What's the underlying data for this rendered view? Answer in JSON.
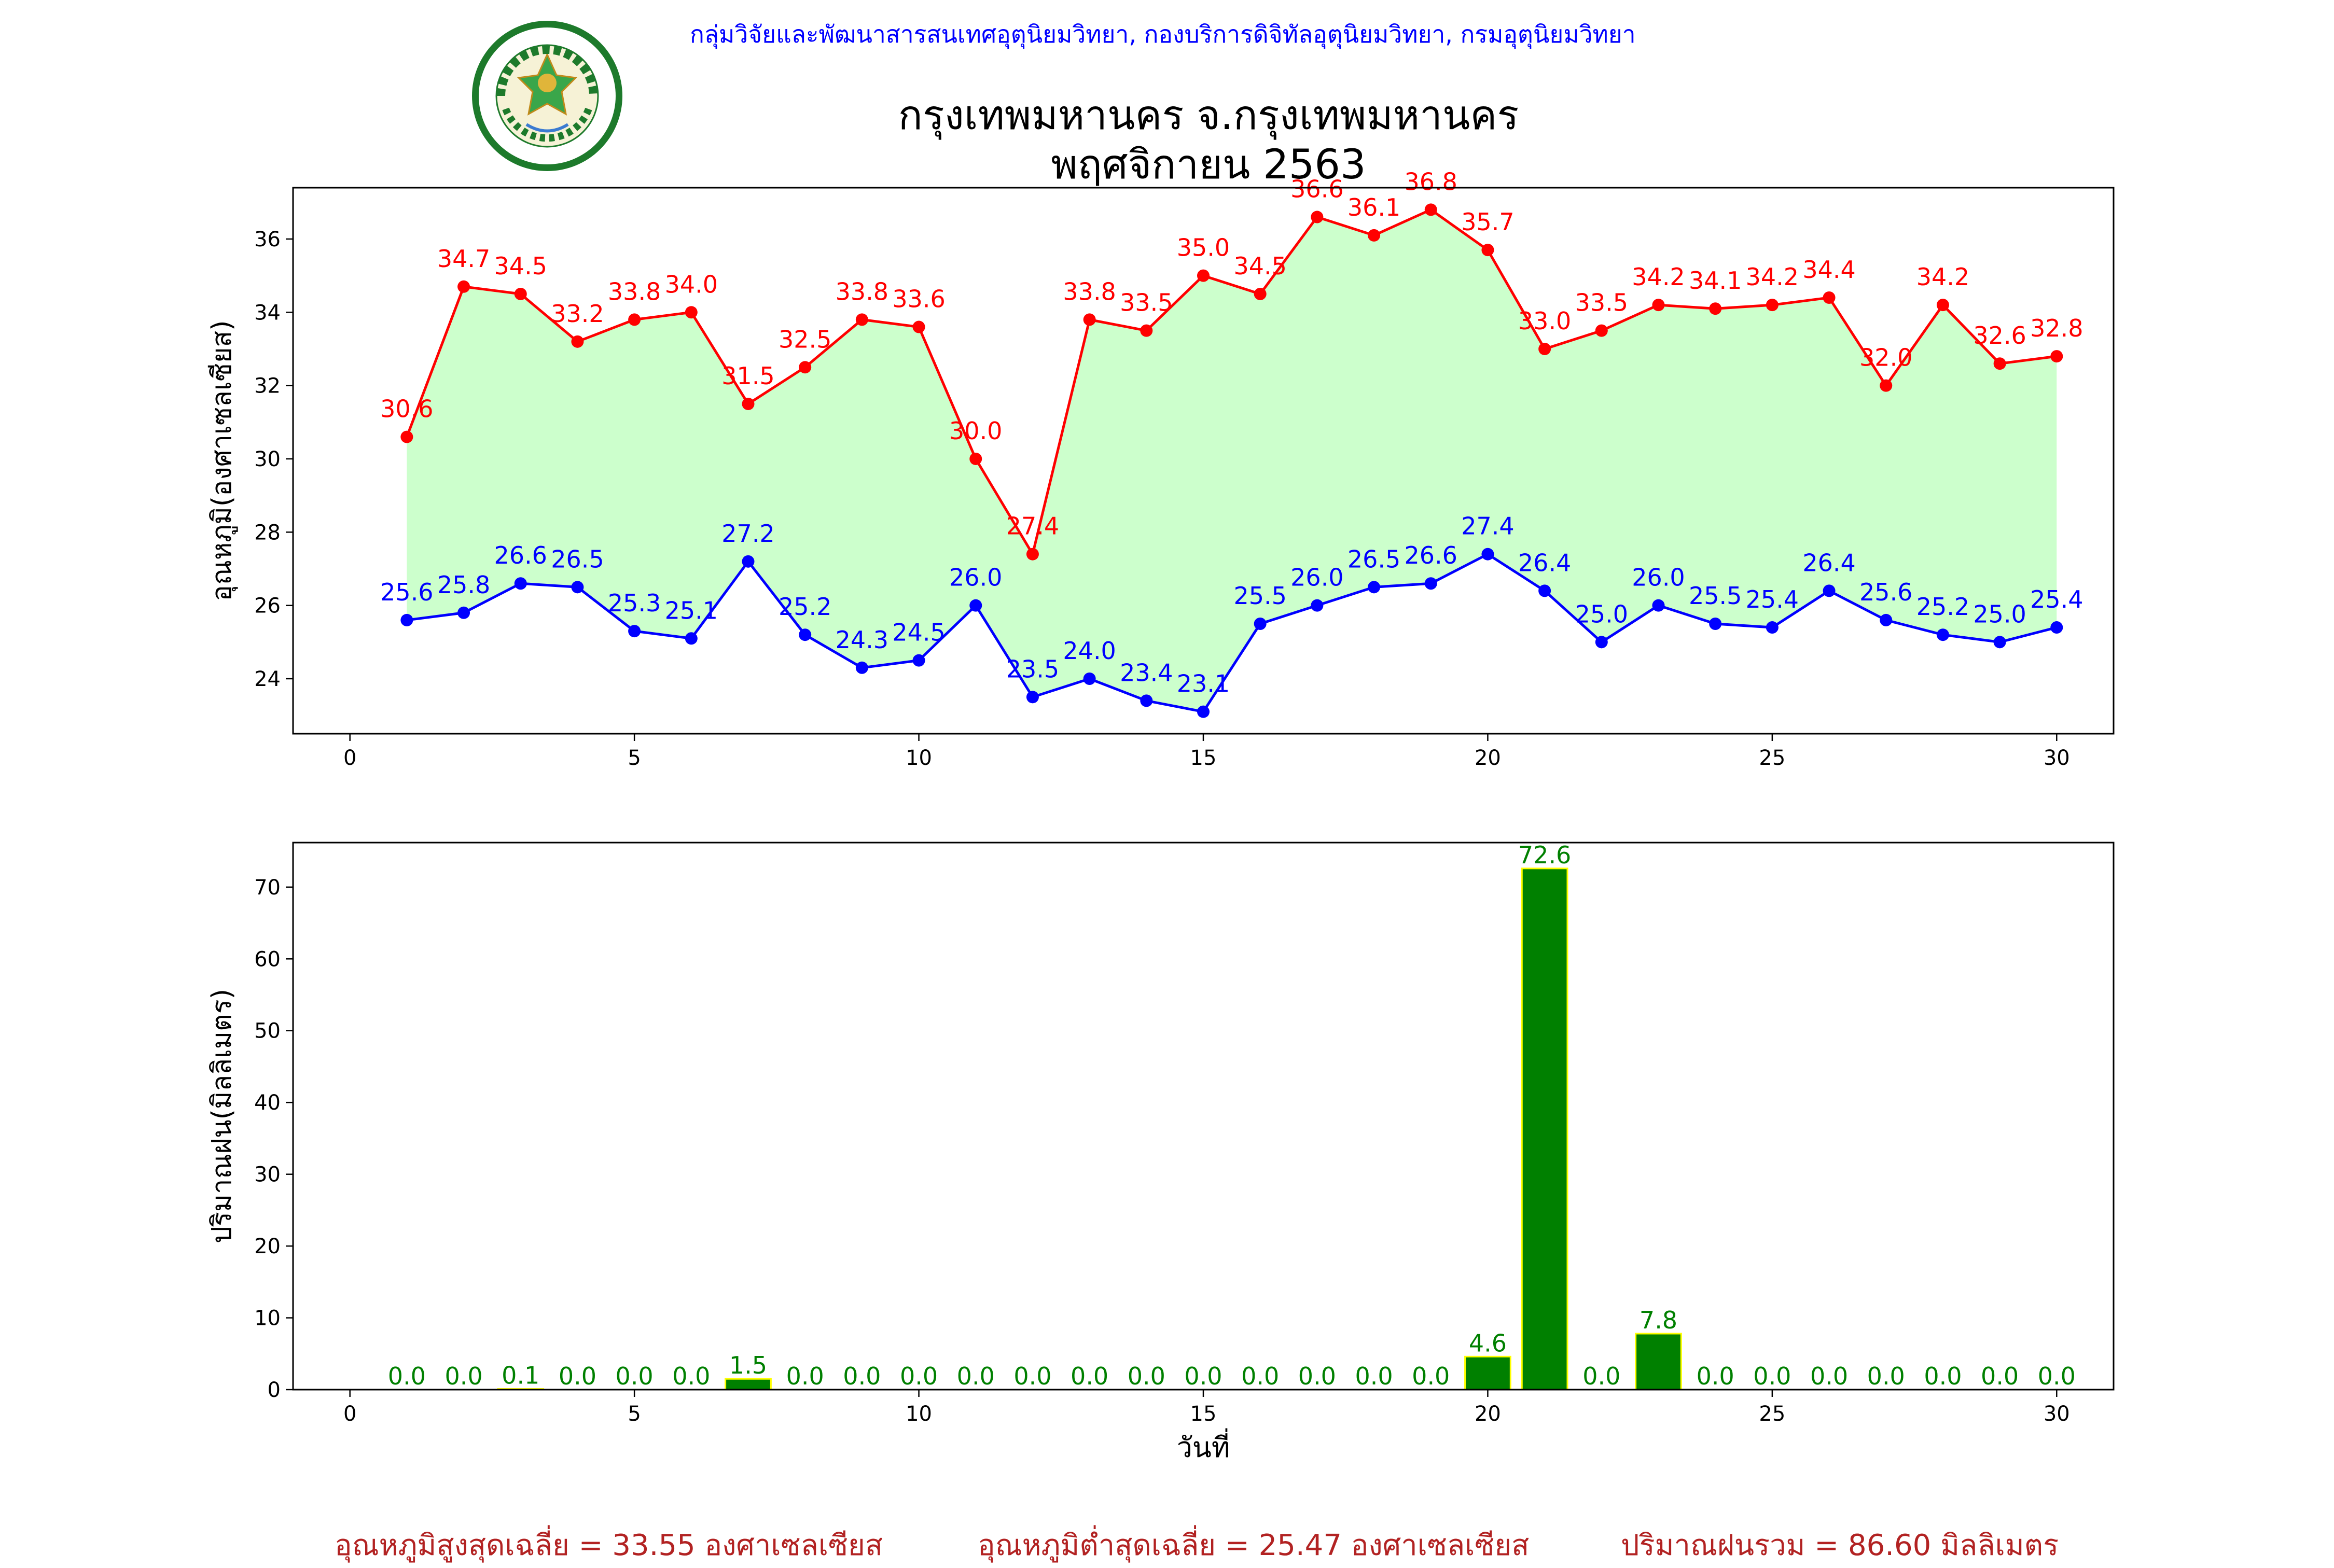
{
  "header": {
    "organization": "กลุ่มวิจัยและพัฒนาสารสนเทศอุตุนิยมวิทยา, กองบริการดิจิทัลอุตุนิยมวิทยา, กรมอุตุนิยมวิทยา",
    "logo_text": "กรมอุตุนิยมวิทยา METEOROLOGICAL DEPARTMENT",
    "title_line1": "กรุงเทพมหานคร จ.กรุงเทพมหานคร",
    "title_line2": "พฤศจิกายน 2563"
  },
  "summary": {
    "avg_max": "อุณหภูมิสูงสุดเฉลี่ย = 33.55 องศาเซลเซียส",
    "avg_min": "อุณหภูมิต่ำสุดเฉลี่ย = 25.47 องศาเซลเซียส",
    "total_rain": "ปริมาณฝนรวม = 86.60 มิลลิเมตร"
  },
  "colors": {
    "max_line": "#ff0000",
    "min_line": "#0000ff",
    "fill": "#ccffcc",
    "rain_bar": "#008000",
    "rain_edge": "#ffff00",
    "rain_label": "#008000"
  },
  "chart_data": [
    {
      "type": "line",
      "ylabel": "อุณหภูมิ(องศาเซลเซียส)",
      "xlabel": "",
      "xlim": [
        -1,
        31
      ],
      "ylim": [
        22.5,
        37.4
      ],
      "xticks": [
        0,
        5,
        10,
        15,
        20,
        25,
        30
      ],
      "yticks": [
        24,
        26,
        28,
        30,
        32,
        34,
        36
      ],
      "x": [
        1,
        2,
        3,
        4,
        5,
        6,
        7,
        8,
        9,
        10,
        11,
        12,
        13,
        14,
        15,
        16,
        17,
        18,
        19,
        20,
        21,
        22,
        23,
        24,
        25,
        26,
        27,
        28,
        29,
        30
      ],
      "series": [
        {
          "values": [
            30.6,
            34.7,
            34.5,
            33.2,
            33.8,
            34.0,
            31.5,
            32.5,
            33.8,
            33.6,
            30.0,
            27.4,
            33.8,
            33.5,
            35.0,
            34.5,
            36.6,
            36.1,
            36.8,
            35.7,
            33.0,
            33.5,
            34.2,
            34.1,
            34.2,
            34.4,
            32.0,
            34.2,
            32.6,
            32.8
          ]
        },
        {
          "values": [
            25.6,
            25.8,
            26.6,
            26.5,
            25.3,
            25.1,
            27.2,
            25.2,
            24.3,
            24.5,
            26.0,
            23.5,
            24.0,
            23.4,
            23.1,
            25.5,
            26.0,
            26.5,
            26.6,
            27.4,
            26.4,
            25.0,
            26.0,
            25.5,
            25.4,
            26.4,
            25.6,
            25.2,
            25.0,
            25.4
          ]
        }
      ]
    },
    {
      "type": "bar",
      "ylabel": "ปริมาณฝน(มิลลิเมตร)",
      "xlabel": "วันที่",
      "xlim": [
        -1,
        31
      ],
      "ylim": [
        0,
        76.2
      ],
      "xticks": [
        0,
        5,
        10,
        15,
        20,
        25,
        30
      ],
      "yticks": [
        0,
        10,
        20,
        30,
        40,
        50,
        60,
        70
      ],
      "x": [
        1,
        2,
        3,
        4,
        5,
        6,
        7,
        8,
        9,
        10,
        11,
        12,
        13,
        14,
        15,
        16,
        17,
        18,
        19,
        20,
        21,
        22,
        23,
        24,
        25,
        26,
        27,
        28,
        29,
        30
      ],
      "values": [
        0.0,
        0.0,
        0.1,
        0.0,
        0.0,
        0.0,
        1.5,
        0.0,
        0.0,
        0.0,
        0.0,
        0.0,
        0.0,
        0.0,
        0.0,
        0.0,
        0.0,
        0.0,
        0.0,
        4.6,
        72.6,
        0.0,
        7.8,
        0.0,
        0.0,
        0.0,
        0.0,
        0.0,
        0.0,
        0.0
      ]
    }
  ]
}
